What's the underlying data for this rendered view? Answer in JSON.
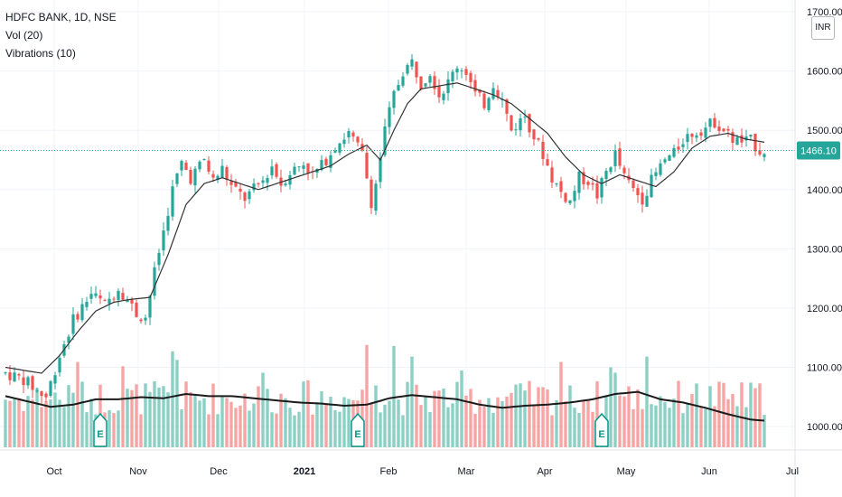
{
  "legend": {
    "symbol": "HDFC BANK, 1D, NSE",
    "volume": "Vol (20)",
    "indicator": "Vibrations (10)"
  },
  "currency_button": "INR",
  "last_price_label": "1466.10",
  "chart_data": {
    "type": "candlestick",
    "title": "HDFC BANK, 1D, NSE",
    "currency": "INR",
    "x_ticks": [
      "Oct",
      "Nov",
      "Dec",
      "2021",
      "Feb",
      "Mar",
      "Apr",
      "May",
      "Jun",
      "Jul"
    ],
    "y_ticks": [
      "1000.00",
      "1100.00",
      "1200.00",
      "1300.00",
      "1400.00",
      "1500.00",
      "1600.00",
      "1700.00"
    ],
    "ylim": [
      965,
      1720
    ],
    "last_price": 1466.1,
    "close_path": [
      [
        0,
        1090
      ],
      [
        4,
        1080
      ],
      [
        7,
        1060
      ],
      [
        9,
        1050
      ],
      [
        12,
        1120
      ],
      [
        15,
        1180
      ],
      [
        19,
        1225
      ],
      [
        22,
        1205
      ],
      [
        25,
        1235
      ],
      [
        27,
        1215
      ],
      [
        29,
        1190
      ],
      [
        31,
        1185
      ],
      [
        33,
        1260
      ],
      [
        35,
        1330
      ],
      [
        37,
        1400
      ],
      [
        39,
        1445
      ],
      [
        41,
        1420
      ],
      [
        44,
        1450
      ],
      [
        46,
        1415
      ],
      [
        48,
        1435
      ],
      [
        50,
        1405
      ],
      [
        53,
        1385
      ],
      [
        55,
        1400
      ],
      [
        57,
        1415
      ],
      [
        59,
        1440
      ],
      [
        61,
        1410
      ],
      [
        63,
        1430
      ],
      [
        66,
        1445
      ],
      [
        68,
        1425
      ],
      [
        70,
        1440
      ],
      [
        73,
        1475
      ],
      [
        76,
        1495
      ],
      [
        79,
        1460
      ],
      [
        81,
        1380
      ],
      [
        82,
        1410
      ],
      [
        84,
        1500
      ],
      [
        86,
        1560
      ],
      [
        88,
        1600
      ],
      [
        90,
        1615
      ],
      [
        92,
        1580
      ],
      [
        94,
        1600
      ],
      [
        96,
        1560
      ],
      [
        98,
        1580
      ],
      [
        100,
        1610
      ],
      [
        102,
        1600
      ],
      [
        104,
        1560
      ],
      [
        106,
        1545
      ],
      [
        108,
        1580
      ],
      [
        110,
        1550
      ],
      [
        112,
        1500
      ],
      [
        115,
        1525
      ],
      [
        117,
        1490
      ],
      [
        119,
        1460
      ],
      [
        121,
        1420
      ],
      [
        123,
        1395
      ],
      [
        125,
        1380
      ],
      [
        127,
        1420
      ],
      [
        129,
        1415
      ],
      [
        131,
        1390
      ],
      [
        133,
        1430
      ],
      [
        135,
        1460
      ],
      [
        137,
        1420
      ],
      [
        139,
        1400
      ],
      [
        141,
        1385
      ],
      [
        143,
        1415
      ],
      [
        146,
        1450
      ],
      [
        148,
        1460
      ],
      [
        150,
        1485
      ],
      [
        152,
        1495
      ],
      [
        155,
        1505
      ],
      [
        157,
        1515
      ],
      [
        159,
        1500
      ],
      [
        161,
        1485
      ],
      [
        163,
        1480
      ],
      [
        165,
        1482
      ],
      [
        167,
        1466
      ]
    ],
    "vibration_path": [
      [
        0,
        1100
      ],
      [
        8,
        1090
      ],
      [
        12,
        1120
      ],
      [
        16,
        1160
      ],
      [
        20,
        1195
      ],
      [
        24,
        1210
      ],
      [
        28,
        1215
      ],
      [
        32,
        1218
      ],
      [
        36,
        1290
      ],
      [
        40,
        1375
      ],
      [
        44,
        1410
      ],
      [
        48,
        1420
      ],
      [
        52,
        1410
      ],
      [
        56,
        1400
      ],
      [
        60,
        1410
      ],
      [
        64,
        1420
      ],
      [
        68,
        1430
      ],
      [
        72,
        1440
      ],
      [
        76,
        1460
      ],
      [
        80,
        1475
      ],
      [
        83,
        1450
      ],
      [
        86,
        1500
      ],
      [
        89,
        1545
      ],
      [
        92,
        1570
      ],
      [
        96,
        1575
      ],
      [
        100,
        1580
      ],
      [
        104,
        1570
      ],
      [
        108,
        1560
      ],
      [
        112,
        1545
      ],
      [
        116,
        1520
      ],
      [
        120,
        1495
      ],
      [
        124,
        1455
      ],
      [
        128,
        1425
      ],
      [
        132,
        1410
      ],
      [
        136,
        1425
      ],
      [
        140,
        1415
      ],
      [
        144,
        1405
      ],
      [
        148,
        1430
      ],
      [
        152,
        1470
      ],
      [
        156,
        1490
      ],
      [
        160,
        1495
      ],
      [
        164,
        1485
      ],
      [
        168,
        1480
      ]
    ],
    "volume_ma_path": [
      [
        0,
        0.48
      ],
      [
        5,
        0.43
      ],
      [
        10,
        0.38
      ],
      [
        15,
        0.4
      ],
      [
        20,
        0.45
      ],
      [
        25,
        0.45
      ],
      [
        30,
        0.47
      ],
      [
        35,
        0.46
      ],
      [
        40,
        0.5
      ],
      [
        45,
        0.48
      ],
      [
        50,
        0.48
      ],
      [
        55,
        0.46
      ],
      [
        60,
        0.44
      ],
      [
        65,
        0.42
      ],
      [
        70,
        0.41
      ],
      [
        75,
        0.39
      ],
      [
        80,
        0.4
      ],
      [
        85,
        0.46
      ],
      [
        90,
        0.49
      ],
      [
        95,
        0.47
      ],
      [
        100,
        0.45
      ],
      [
        105,
        0.4
      ],
      [
        110,
        0.37
      ],
      [
        115,
        0.39
      ],
      [
        120,
        0.4
      ],
      [
        125,
        0.42
      ],
      [
        130,
        0.45
      ],
      [
        135,
        0.5
      ],
      [
        140,
        0.52
      ],
      [
        145,
        0.45
      ],
      [
        150,
        0.42
      ],
      [
        155,
        0.37
      ],
      [
        160,
        0.31
      ],
      [
        165,
        0.26
      ],
      [
        168,
        0.25
      ]
    ],
    "volume_spikes": {
      "16": 0.8,
      "26": 0.76,
      "37": 0.9,
      "38": 0.82,
      "57": 0.7,
      "80": 0.96,
      "82": 0.58,
      "86": 0.95,
      "90": 0.85,
      "101": 0.72,
      "123": 0.8,
      "125": 0.58,
      "134": 0.75,
      "135": 0.7,
      "142": 0.85,
      "152": 0.5
    },
    "earnings_markers": [
      21,
      78,
      132
    ],
    "colors": {
      "up": "#26a69a",
      "down": "#ef5350",
      "volume_up": "#8ccfc5",
      "volume_down": "#f4a5a4",
      "vibration_line": "#333333",
      "volume_ma": "#1b1b1b",
      "last_price": "#26a69a",
      "grid": "#f0f3fa"
    }
  }
}
